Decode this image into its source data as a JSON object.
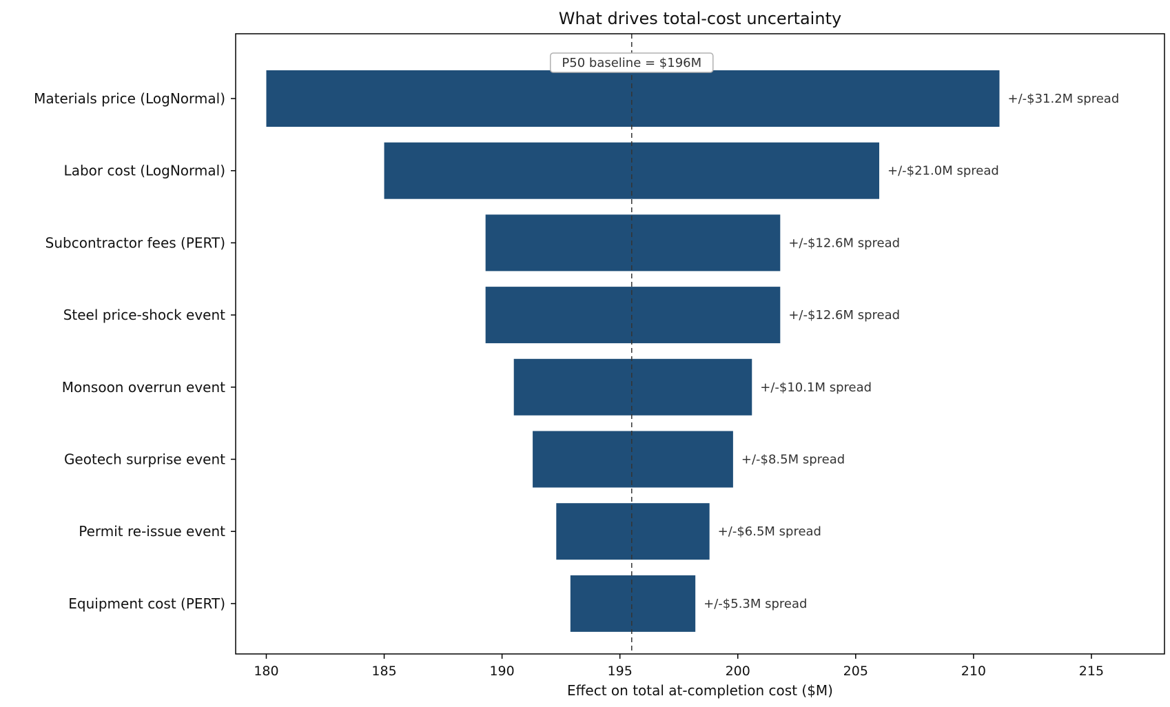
{
  "chart_data": {
    "type": "bar",
    "orientation": "horizontal",
    "title": "What drives total-cost uncertainty",
    "xlabel": "Effect on total at-completion cost  ($M)",
    "xlim": [
      178.7,
      218.1
    ],
    "xticks": [
      180,
      185,
      190,
      195,
      200,
      205,
      210,
      215
    ],
    "baseline": {
      "value": 195.5,
      "label": "P50 baseline = $196M"
    },
    "color": "#1f4e78",
    "categories": [
      "Materials price (LogNormal)",
      "Labor cost (LogNormal)",
      "Subcontractor fees (PERT)",
      "Steel price-shock event",
      "Monsoon overrun event",
      "Geotech surprise event",
      "Permit re-issue event",
      "Equipment cost (PERT)"
    ],
    "low": [
      180.0,
      185.0,
      189.3,
      189.3,
      190.5,
      191.3,
      192.3,
      192.9
    ],
    "high": [
      211.1,
      206.0,
      201.8,
      201.8,
      200.6,
      199.8,
      198.8,
      198.2
    ],
    "labels": [
      "+/-$31.2M spread",
      "+/-$21.0M spread",
      "+/-$12.6M spread",
      "+/-$12.6M spread",
      "+/-$10.1M spread",
      "+/-$8.5M spread",
      "+/-$6.5M spread",
      "+/-$5.3M spread"
    ]
  }
}
